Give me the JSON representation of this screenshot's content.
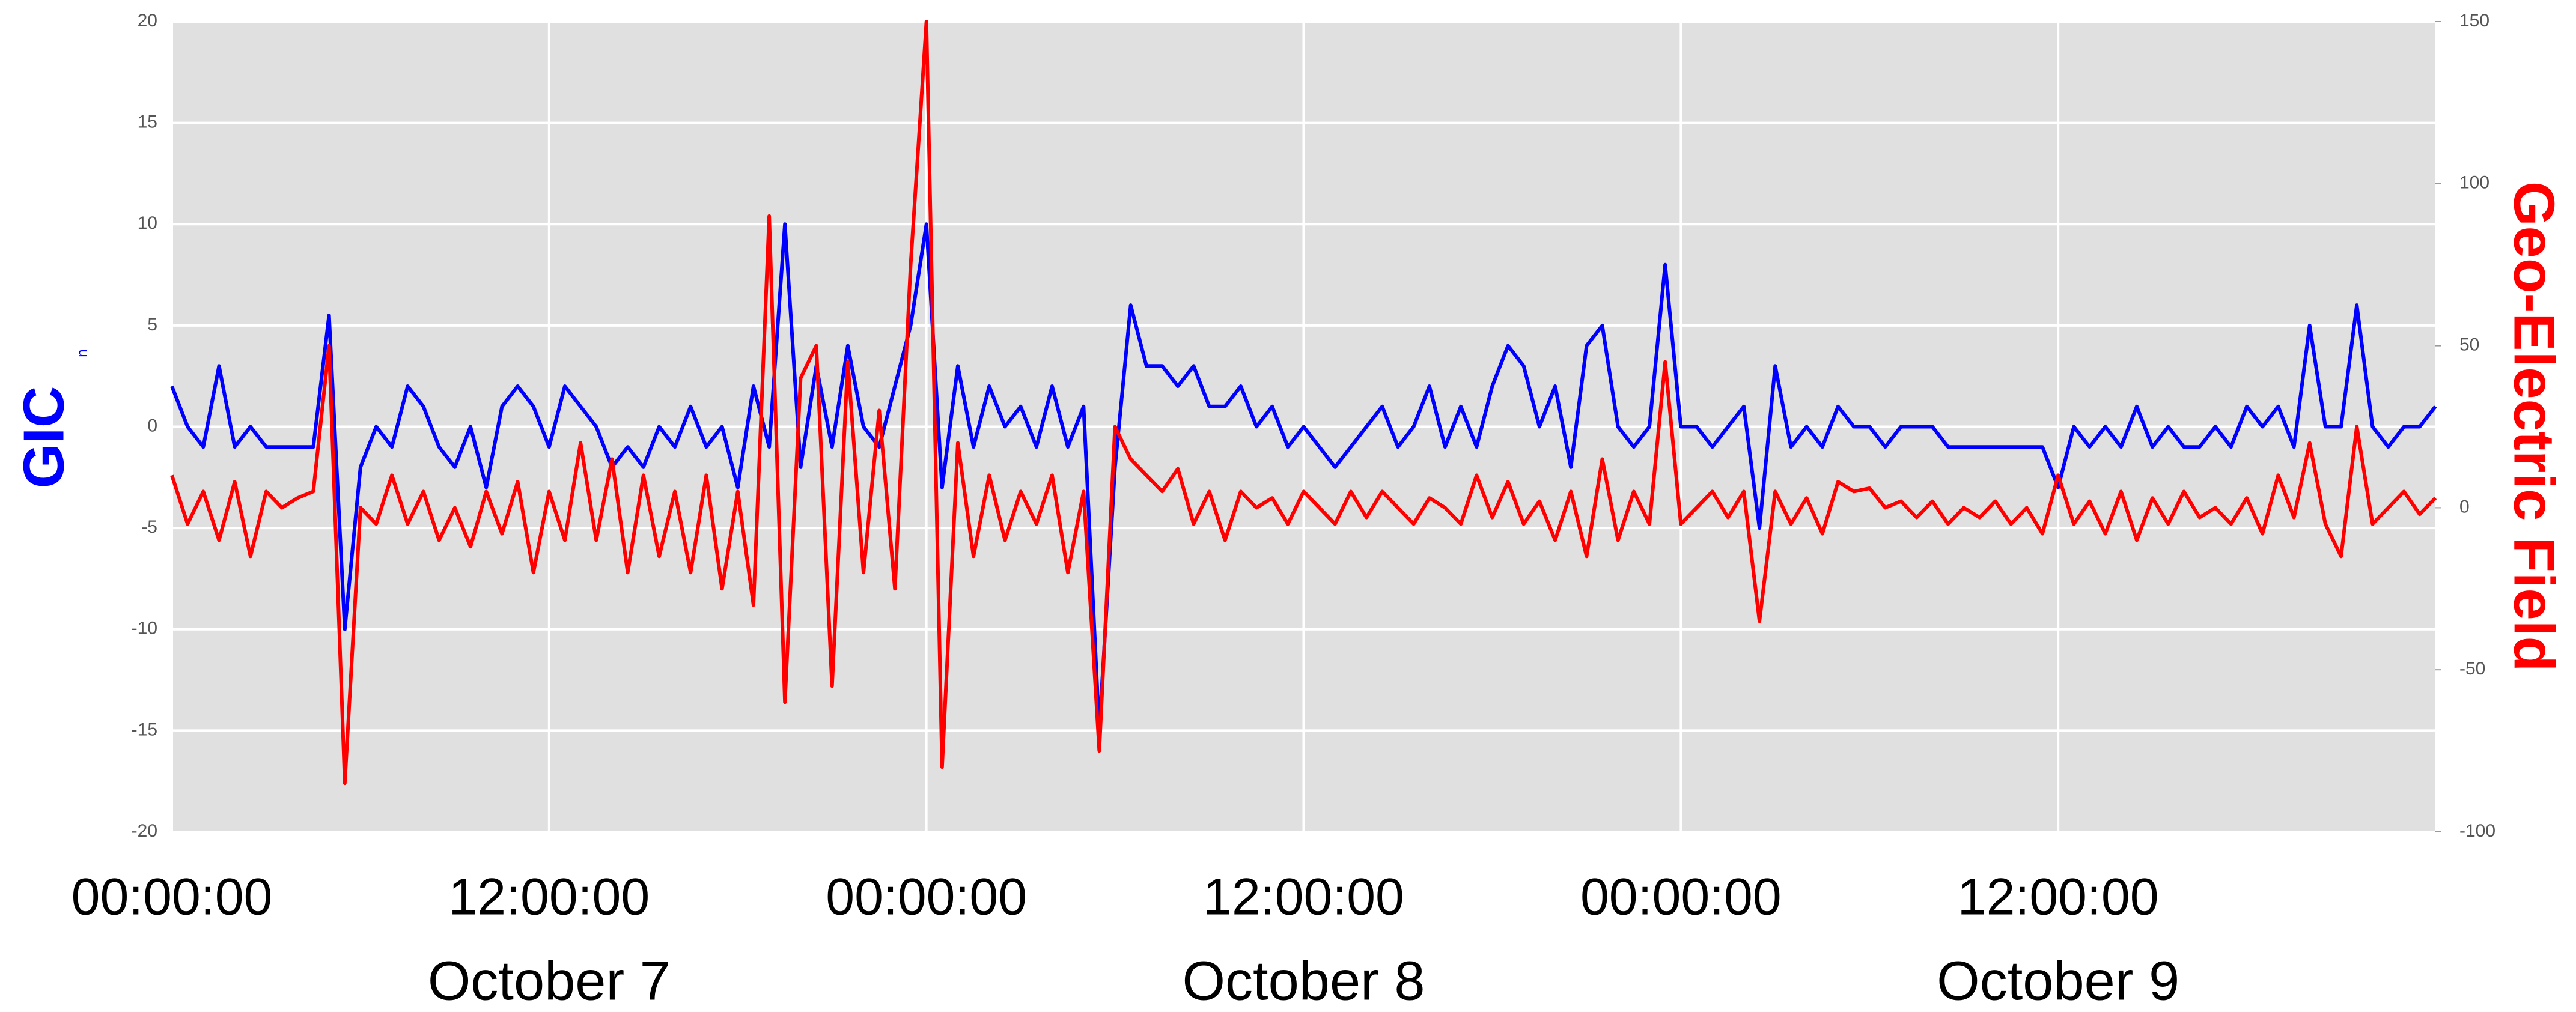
{
  "chart_data": {
    "type": "line",
    "y_label": "GIC",
    "y_label_subscript": "n",
    "y2_label": "Geo-Electric Field",
    "xlim": [
      0,
      72
    ],
    "xticks": [
      {
        "value": 0,
        "label": "00:00:00"
      },
      {
        "value": 12,
        "label": "12:00:00"
      },
      {
        "value": 24,
        "label": "00:00:00"
      },
      {
        "value": 36,
        "label": "12:00:00"
      },
      {
        "value": 48,
        "label": "00:00:00"
      },
      {
        "value": 60,
        "label": "12:00:00"
      }
    ],
    "x_day_labels": [
      {
        "value": 12,
        "label": "October 7"
      },
      {
        "value": 36,
        "label": "October 8"
      },
      {
        "value": 60,
        "label": "October 9"
      }
    ],
    "ylim": [
      -20,
      20
    ],
    "yticks": [
      -20,
      -15,
      -10,
      -5,
      0,
      5,
      10,
      15,
      20
    ],
    "y2lim": [
      -100,
      150
    ],
    "y2ticks": [
      -100,
      -50,
      0,
      50,
      100,
      150
    ],
    "grid": true,
    "x": [
      0,
      0.5,
      1,
      1.5,
      2,
      2.5,
      3,
      3.5,
      4,
      4.5,
      5,
      5.5,
      6,
      6.5,
      7,
      7.5,
      8,
      8.5,
      9,
      9.5,
      10,
      10.5,
      11,
      11.5,
      12,
      12.5,
      13,
      13.5,
      14,
      14.5,
      15,
      15.5,
      16,
      16.5,
      17,
      17.5,
      18,
      18.5,
      19,
      19.5,
      20,
      20.5,
      21,
      21.5,
      22,
      22.5,
      23,
      23.5,
      24,
      24.5,
      25,
      25.5,
      26,
      26.5,
      27,
      27.5,
      28,
      28.5,
      29,
      29.5,
      30,
      30.5,
      31,
      31.5,
      32,
      32.5,
      33,
      33.5,
      34,
      34.5,
      35,
      35.5,
      36,
      36.5,
      37,
      37.5,
      38,
      38.5,
      39,
      39.5,
      40,
      40.5,
      41,
      41.5,
      42,
      42.5,
      43,
      43.5,
      44,
      44.5,
      45,
      45.5,
      46,
      46.5,
      47,
      47.5,
      48,
      48.5,
      49,
      49.5,
      50,
      50.5,
      51,
      51.5,
      52,
      52.5,
      53,
      53.5,
      54,
      54.5,
      55,
      55.5,
      56,
      56.5,
      57,
      57.5,
      58,
      58.5,
      59,
      59.5,
      60,
      60.5,
      61,
      61.5,
      62,
      62.5,
      63,
      63.5,
      64,
      64.5,
      65,
      65.5,
      66,
      66.5,
      67,
      67.5,
      68,
      68.5,
      69,
      69.5,
      70,
      70.5,
      71,
      71.5,
      72
    ],
    "series": [
      {
        "name": "GIC",
        "color": "#0000ff",
        "axis": "y",
        "values": [
          2,
          0,
          -1,
          3,
          -1,
          0,
          -1,
          -1,
          -1,
          -1,
          5.5,
          -10,
          -2,
          0,
          -1,
          2,
          1,
          -1,
          -2,
          0,
          -3,
          1,
          2,
          1,
          -1,
          2,
          1,
          0,
          -2,
          -1,
          -2,
          0,
          -1,
          1,
          -1,
          0,
          -3,
          2,
          -1,
          10,
          -2,
          3,
          -1,
          4,
          0,
          -1,
          2,
          5,
          10,
          -3,
          3,
          -1,
          2,
          0,
          1,
          -1,
          2,
          -1,
          1,
          -15,
          -2,
          6,
          3,
          3,
          2,
          3,
          1,
          1,
          2,
          0,
          1,
          -1,
          0,
          -1,
          -2,
          -1,
          0,
          1,
          -1,
          0,
          2,
          -1,
          1,
          -1,
          2,
          4,
          3,
          0,
          2,
          -2,
          4,
          5,
          0,
          -1,
          0,
          8,
          0,
          0,
          -1,
          0,
          1,
          -5,
          3,
          -1,
          0,
          -1,
          1,
          0,
          0,
          -1,
          0,
          0,
          0,
          -1,
          -1,
          -1,
          -1,
          -1,
          -1,
          -1,
          -3,
          0,
          -1,
          0,
          -1,
          1,
          -1,
          0,
          -1,
          -1,
          0,
          -1,
          1,
          0,
          1,
          -1,
          5,
          0,
          0,
          6,
          0,
          -1,
          0,
          0,
          1
        ]
      },
      {
        "name": "Geo-Electric Field",
        "color": "#ff0000",
        "axis": "y2",
        "values": [
          10,
          -5,
          5,
          -10,
          8,
          -15,
          5,
          0,
          3,
          5,
          50,
          -85,
          0,
          -5,
          10,
          -5,
          5,
          -10,
          0,
          -12,
          5,
          -8,
          8,
          -20,
          5,
          -10,
          20,
          -10,
          15,
          -20,
          10,
          -15,
          5,
          -20,
          10,
          -25,
          5,
          -30,
          90,
          -60,
          40,
          50,
          -55,
          45,
          -20,
          30,
          -25,
          75,
          150,
          -80,
          20,
          -15,
          10,
          -10,
          5,
          -5,
          10,
          -20,
          5,
          -75,
          25,
          15,
          10,
          5,
          12,
          -5,
          5,
          -10,
          5,
          0,
          3,
          -5,
          5,
          0,
          -5,
          5,
          -3,
          5,
          0,
          -5,
          3,
          0,
          -5,
          10,
          -3,
          8,
          -5,
          2,
          -10,
          5,
          -15,
          15,
          -10,
          5,
          -5,
          45,
          -5,
          0,
          5,
          -3,
          5,
          -35,
          5,
          -5,
          3,
          -8,
          8,
          5,
          6,
          0,
          2,
          -3,
          2,
          -5,
          0,
          -3,
          2,
          -5,
          0,
          -8,
          10,
          -5,
          2,
          -8,
          5,
          -10,
          3,
          -5,
          5,
          -3,
          0,
          -5,
          3,
          -8,
          10,
          -3,
          20,
          -5,
          -15,
          25,
          -5,
          0,
          5,
          -2,
          3
        ]
      }
    ]
  }
}
